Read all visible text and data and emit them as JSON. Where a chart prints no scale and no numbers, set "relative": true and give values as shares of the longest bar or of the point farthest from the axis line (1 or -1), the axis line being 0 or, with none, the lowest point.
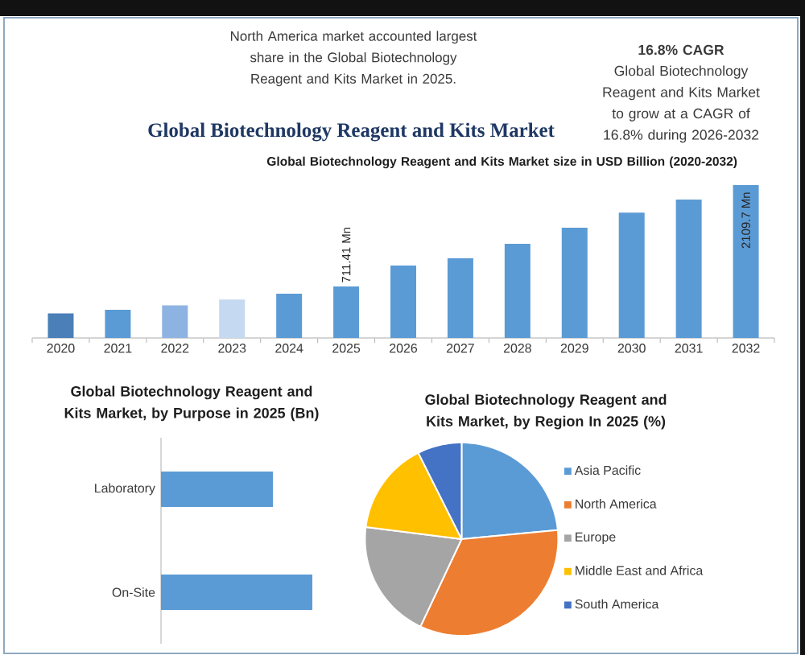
{
  "chart_data": [
    {
      "type": "other",
      "title": "Global Biotechnology Reagent and Kits Market",
      "annotations": [
        "North America market accounted largest share in the Global Biotechnology Reagent and Kits Market in 2025.",
        "16.8% CAGR",
        "Global Biotechnology Reagent and Kits Market to grow at a CAGR of 16.8% during 2026-2032"
      ]
    },
    {
      "type": "bar",
      "title": "Global Biotechnology Reagent and Kits Market size in USD Billion (2020-2032)",
      "categories": [
        "2020",
        "2021",
        "2022",
        "2023",
        "2024",
        "2025",
        "2026",
        "2027",
        "2028",
        "2029",
        "2030",
        "2031",
        "2032"
      ],
      "values": [
        340,
        390,
        450,
        530,
        610,
        711.41,
        1000,
        1100,
        1300,
        1520,
        1730,
        1910,
        2109.7
      ],
      "colors": [
        "#4a7fb8",
        "#5b9bd5",
        "#8db3e2",
        "#c5d9f1",
        "#5b9bd5",
        "#5b9bd5",
        "#5b9bd5",
        "#5b9bd5",
        "#5b9bd5",
        "#5b9bd5",
        "#5b9bd5",
        "#5b9bd5",
        "#5b9bd5"
      ],
      "value_labels": [
        null,
        null,
        null,
        null,
        null,
        "711.41 Mn",
        null,
        null,
        null,
        null,
        null,
        null,
        "2109.7 Mn"
      ],
      "tick_labels": "x"
    },
    {
      "type": "bar",
      "orientation": "horizontal",
      "relative": true,
      "title": "Global Biotechnology Reagent and Kits Market, by Purpose in 2025 (Bn)",
      "categories": [
        "Laboratory",
        "On-Site"
      ],
      "values": [
        0.74,
        1
      ],
      "color": "#5b9bd5"
    },
    {
      "type": "pie",
      "title": "Global Biotechnology Reagent and Kits Market, by Region In 2025 (%)",
      "categories": [
        "Asia Pacific",
        "North America",
        "Europe",
        "Middle East and Africa",
        "South America"
      ],
      "values": [
        23.5,
        33.5,
        20.0,
        15.6,
        7.4
      ],
      "colors": [
        "#5b9bd5",
        "#ed7d31",
        "#a5a5a5",
        "#ffc000",
        "#4472c4"
      ],
      "legend": "right"
    }
  ]
}
